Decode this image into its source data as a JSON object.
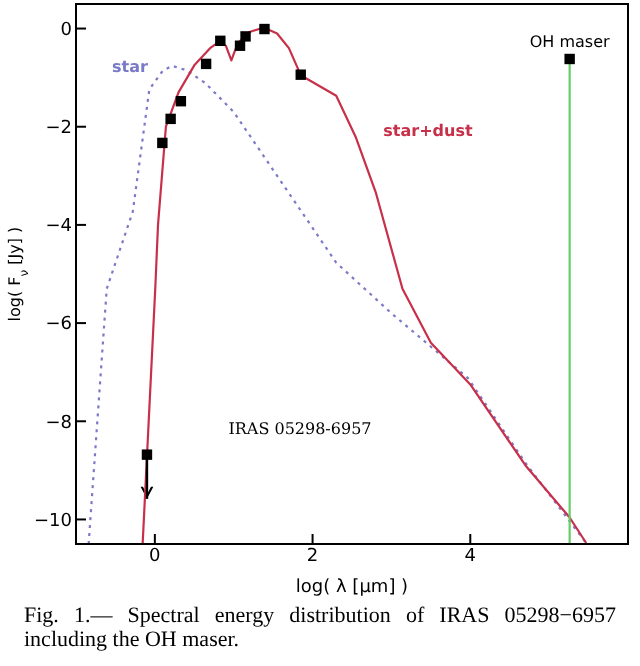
{
  "chart_data": {
    "type": "line",
    "xlabel": "log( λ [μm] )",
    "ylabel": "log( F$_{ν}$ [Jy] )",
    "xlim": [
      -1,
      6
    ],
    "xticks": [
      0,
      2,
      4
    ],
    "ylim": [
      -10.5,
      0.5
    ],
    "yticks": [
      -10,
      -8,
      -6,
      -4,
      -2,
      0
    ],
    "grid": false,
    "legend": false,
    "annotations": [
      {
        "text": "OH maser",
        "x": 5.26,
        "y": -0.62
      },
      "IRAS 05298-6957",
      "Fig. 1.— Spectral energy distribution of IRAS 05298−6957 including the OH maser."
    ],
    "series": [
      {
        "name": "star",
        "line_style": "dotted",
        "color": "#7a7ac8",
        "x": [
          -0.84,
          -0.61,
          -0.28,
          -0.07,
          0.1,
          0.22,
          0.4,
          0.64,
          1.0,
          1.47,
          2.3,
          3.0,
          3.97,
          4.7,
          5.47
        ],
        "values": [
          -10.5,
          -5.3,
          -3.73,
          -1.24,
          -0.86,
          -0.76,
          -0.85,
          -1.11,
          -1.7,
          -2.81,
          -4.77,
          -5.8,
          -7.12,
          -8.85,
          -10.48
        ]
      },
      {
        "name": "star+dust",
        "line_style": "solid",
        "color": "#c8304a",
        "x": [
          -0.155,
          0.005,
          0.04,
          0.14,
          0.3,
          0.5,
          0.7,
          0.83,
          0.9,
          0.97,
          1.05,
          1.2,
          1.38,
          1.55,
          1.7,
          1.85,
          2.3,
          2.55,
          2.8,
          3.14,
          3.5,
          4.0,
          4.7,
          5.26,
          5.47
        ],
        "values": [
          -10.5,
          -5.3,
          -4.0,
          -2.0,
          -1.3,
          -0.75,
          -0.4,
          -0.25,
          -0.35,
          -0.65,
          -0.3,
          -0.07,
          0.02,
          -0.1,
          -0.4,
          -0.95,
          -1.37,
          -2.22,
          -3.33,
          -5.3,
          -6.4,
          -7.25,
          -8.9,
          -9.96,
          -10.48
        ]
      },
      {
        "line_style": "solid",
        "color": "#66cc66",
        "x": [
          5.26,
          5.26
        ],
        "values": [
          -0.62,
          -10.5
        ]
      },
      {
        "type": "scatter",
        "marker": "square",
        "color": "#000000",
        "x": [
          -0.1,
          0.095,
          0.2,
          0.33,
          0.65,
          0.83,
          1.08,
          1.15,
          1.39,
          1.85,
          5.26
        ],
        "values": [
          -8.68,
          -2.33,
          -1.84,
          -1.48,
          -0.72,
          -0.25,
          -0.35,
          -0.16,
          -0.01,
          -0.94,
          -0.62
        ],
        "errors": [
          [
            -9.58,
            -8.68
          ],
          null,
          null,
          null,
          null,
          null,
          null,
          null,
          null,
          null,
          null
        ]
      }
    ]
  }
}
